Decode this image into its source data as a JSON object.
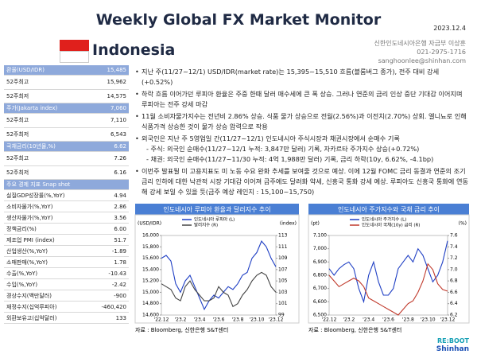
{
  "header": {
    "title": "Weekly Global FX Market Monitor",
    "date": "2023.12.4",
    "country": "Indonesia",
    "contact": [
      "신한인도네시아은행 자금부 이상훈",
      "021-2975-1716",
      "sanghoonlee@shinhan.com"
    ]
  },
  "table": {
    "rows": [
      {
        "label": "환율(USD/IDR)",
        "value": "15,485",
        "header": true
      },
      {
        "label": "52주최고",
        "value": "15,962"
      },
      {
        "label": "52주최저",
        "value": "14,575"
      },
      {
        "label": "주가(Jakarta index)",
        "value": "7,060",
        "header": true
      },
      {
        "label": "52주최고",
        "value": "7,110"
      },
      {
        "label": "52주최저",
        "value": "6,543"
      },
      {
        "label": "국채금리(10년물,%)",
        "value": "6.62",
        "header": true
      },
      {
        "label": "52주최고",
        "value": "7.26"
      },
      {
        "label": "52주최저",
        "value": "6.16"
      },
      {
        "label": "주요 경제 지표 Snap shot",
        "header": true
      },
      {
        "label": "실질GDP성장률(%,YoY)",
        "value": "4.94"
      },
      {
        "label": "소비자물가(%,YoY)",
        "value": "2.86"
      },
      {
        "label": "생산자물가(%,YoY)",
        "value": "3.56"
      },
      {
        "label": "정책금리(%)",
        "value": "6.00"
      },
      {
        "label": "제조업 PMI (index)",
        "value": "51.7"
      },
      {
        "label": "산업생산(%,YoY)",
        "value": "-1.89"
      },
      {
        "label": "소매판매(%,YoY)",
        "value": "1.78"
      },
      {
        "label": "수출(%,YoY)",
        "value": "-10.43"
      },
      {
        "label": "수입(%,YoY)",
        "value": "-2.42"
      },
      {
        "label": "경상수지(백만달러)",
        "value": "-900"
      },
      {
        "label": "재정수지(십억루피아)",
        "value": "-460,420"
      },
      {
        "label": "외환보유고(십억달러)",
        "value": "133"
      }
    ]
  },
  "bullets": [
    {
      "text": "지난 주(11/27~12/1) USD/IDR(market rate)는 15,395~15,510 흐름(블룸버그 종가), 전주 대비 강세(+0.52%)"
    },
    {
      "text": "하락 흐름 이어가던 루피아 환율은 주중 한때 달러 매수세에 큰 폭 상승. 그러나 연준의 금리 인상 중단 기대감 이어지며 루피아는 전주 강세 마감"
    },
    {
      "text": "11월 소비자물가지수는 전년비 2.86% 상승. 식품 물가 상승으로 전월(2.56%)과 이전치(2.70%) 상회. 엘니뇨로 인해 식품가격 상승한 것이 물가 상승 압력으로 작용"
    },
    {
      "text": "외국인은 지난 주 5영업일 간(11/27~12/1) 인도네시아 주식시장과 채권시장에서 순매수 기록",
      "sub": [
        "- 주식: 외국인 순매수(11/27~12/1 누적: 3,847만 달러) 기록, 자카르타 주가지수 상승(+0.72%)",
        "- 채권: 외국인 순매수(11/27~11/30 누적: 4억 1,988만 달러) 기록, 금리 하락(10y, 6.62%, -4.1bp)"
      ]
    },
    {
      "text": "이번주 발표될 미 고용지표도 미 노동 수요 완화 추세를 보여줄 것으로 예상. 이에 12월 FOMC 금리 동결과 연준의 조기 금리 인하에 대한 낙관적 시장 기대감 이어져 금주에도 달러화 약세, 신흥국 통화 강세 예상. 루피아도 신흥국 통화에 연동해 강세 보일 수 있을 듯(금주 예상 레인지 : 15,100~15,750)"
    }
  ],
  "chart_data": [
    {
      "type": "line",
      "title": "인도네시아 루피아 환율과 달러지수 추이",
      "ylabel": "(USD/IDR)",
      "y2label": "(index)",
      "source": "자료 : Bloomberg, 신한은행 S&T센터",
      "categories": [
        "'22.12",
        null,
        null,
        null,
        "'23.2",
        null,
        null,
        null,
        "'23.4",
        null,
        null,
        null,
        "'23.6",
        null,
        null,
        null,
        "'23.8",
        null,
        null,
        null,
        "'23.10",
        null,
        null,
        null,
        "'23.12"
      ],
      "series": [
        {
          "name": "인도네시아 루피아 (L)",
          "color": "#1f3fc4",
          "values": [
            15600,
            15650,
            15550,
            15150,
            15000,
            15200,
            15300,
            15100,
            14900,
            14700,
            14850,
            14950,
            14900,
            15000,
            15100,
            15050,
            15150,
            15300,
            15350,
            15600,
            15700,
            15900,
            15800,
            15600,
            15450
          ]
        },
        {
          "name": "달러지수 (R)",
          "color": "#444444",
          "axis": "y2",
          "values": [
            104.5,
            104,
            103.5,
            102,
            101.5,
            104,
            105,
            103.5,
            102.5,
            101.5,
            101.5,
            102,
            104,
            103,
            102.5,
            100.5,
            101,
            102.5,
            103.5,
            105,
            106,
            106.5,
            106,
            104,
            103
          ]
        }
      ],
      "ylim": [
        14600,
        16000
      ],
      "yticks": [
        {
          "value": 14600,
          "label": "14,600"
        },
        {
          "value": 14800,
          "label": "14,800"
        },
        {
          "value": 15000,
          "label": "15,000"
        },
        {
          "value": 15200,
          "label": "15,200"
        },
        {
          "value": 15400,
          "label": "15,400"
        },
        {
          "value": 15600,
          "label": "15,600"
        },
        {
          "value": 15800,
          "label": "15,800"
        },
        {
          "value": 16000,
          "label": "16,000"
        }
      ],
      "y2lim": [
        99,
        113
      ],
      "y2ticks": [
        99,
        101,
        103,
        105,
        107,
        109,
        111,
        113
      ]
    },
    {
      "type": "line",
      "title": "인도네시아 주가지수와 국채 금리 추이",
      "ylabel": "(pt)",
      "y2label": "(%)",
      "source": "자료 : Bloomberg, 신한은행 S&T센터",
      "categories": [
        "'22.12",
        null,
        null,
        null,
        "'23.2",
        null,
        null,
        null,
        "'23.4",
        null,
        null,
        null,
        "'23.6",
        null,
        null,
        null,
        "'23.8",
        null,
        null,
        null,
        "'23.10",
        null,
        null,
        null,
        "'23.12"
      ],
      "series": [
        {
          "name": "인도네시아 주가지수 (L)",
          "color": "#1f3fc4",
          "values": [
            6850,
            6800,
            6850,
            6880,
            6900,
            6850,
            6700,
            6600,
            6800,
            6900,
            6750,
            6650,
            6650,
            6700,
            6850,
            6900,
            6950,
            6900,
            7000,
            6950,
            6850,
            6750,
            6800,
            6900,
            7060
          ]
        },
        {
          "name": "인도네시아 국채(10y) 금리 (R)",
          "color": "#c0392b",
          "axis": "y2",
          "values": [
            6.9,
            6.8,
            6.7,
            6.75,
            6.8,
            6.85,
            6.8,
            6.7,
            6.5,
            6.45,
            6.4,
            6.35,
            6.3,
            6.25,
            6.2,
            6.3,
            6.4,
            6.45,
            6.6,
            6.8,
            7.1,
            7.0,
            6.75,
            6.65,
            6.62
          ]
        }
      ],
      "ylim": [
        6500,
        7100
      ],
      "yticks": [
        {
          "value": 6500,
          "label": "6,500"
        },
        {
          "value": 6600,
          "label": "6,600"
        },
        {
          "value": 6700,
          "label": "6,700"
        },
        {
          "value": 6800,
          "label": "6,800"
        },
        {
          "value": 6900,
          "label": "6,900"
        },
        {
          "value": 7000,
          "label": "7,000"
        },
        {
          "value": 7100,
          "label": "7,100"
        }
      ],
      "y2lim": [
        6.2,
        7.6
      ],
      "y2ticks": [
        6.2,
        6.4,
        6.6,
        6.8,
        {
          "value": 7,
          "label": "7.0"
        },
        7.2,
        7.4,
        7.6
      ]
    }
  ],
  "logo": {
    "top": "RE:BOOT",
    "bottom": "Shinhan"
  }
}
